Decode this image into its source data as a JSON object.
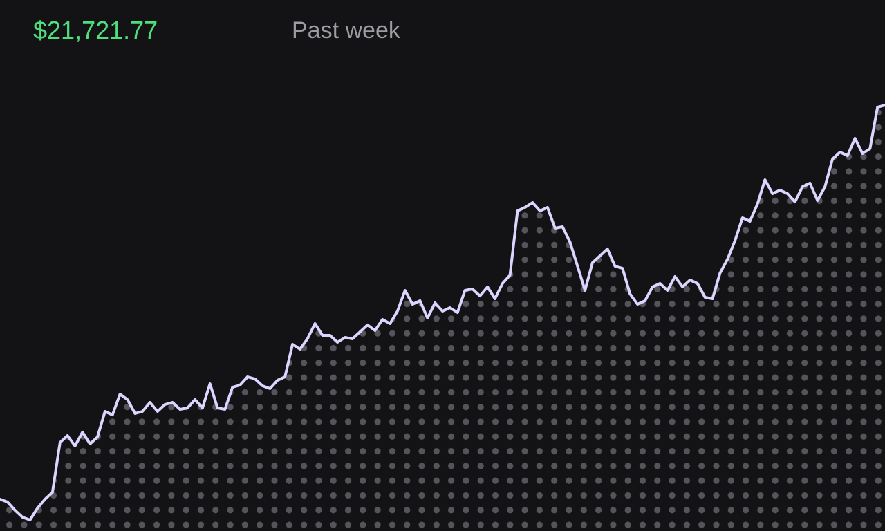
{
  "header": {
    "price": "$21,721.77",
    "period": "Past week"
  },
  "chart_data": {
    "type": "area",
    "values": [
      46,
      42,
      30,
      20,
      16,
      33,
      46,
      56,
      128,
      138,
      123,
      143,
      126,
      136,
      173,
      168,
      198,
      190,
      170,
      173,
      186,
      173,
      183,
      186,
      176,
      178,
      190,
      178,
      213,
      178,
      176,
      208,
      211,
      223,
      220,
      210,
      206,
      218,
      223,
      270,
      263,
      278,
      300,
      283,
      283,
      273,
      280,
      278,
      288,
      298,
      290,
      306,
      300,
      318,
      348,
      328,
      333,
      308,
      330,
      318,
      323,
      316,
      348,
      350,
      340,
      353,
      336,
      358,
      370,
      463,
      468,
      475,
      463,
      468,
      438,
      440,
      418,
      383,
      348,
      388,
      398,
      408,
      383,
      380,
      343,
      328,
      333,
      353,
      358,
      348,
      368,
      353,
      363,
      358,
      338,
      336,
      373,
      393,
      420,
      453,
      448,
      473,
      508,
      488,
      493,
      488,
      476,
      498,
      503,
      478,
      498,
      538,
      548,
      543,
      568,
      546,
      553,
      613,
      616
    ],
    "color": "#ddd5ff",
    "fill_dot_color": "#55545a",
    "ylim": [
      0,
      768
    ]
  }
}
